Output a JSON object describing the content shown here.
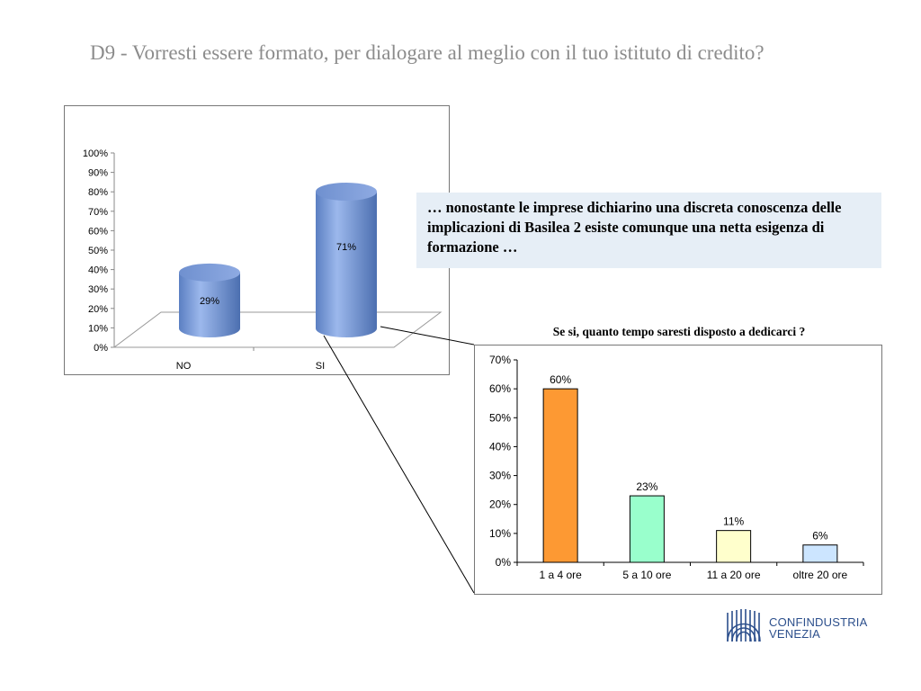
{
  "title": "D9 - Vorresti essere formato, per dialogare al meglio con il tuo istituto di credito?",
  "callout": "… nonostante le imprese dichiarino una discreta conoscenza delle implicazioni  di Basilea 2 esiste comunque una netta esigenza di formazione …",
  "logo": {
    "line1": "CONFINDUSTRIA",
    "line2": "VENEZIA"
  },
  "colors": {
    "title": "#8c8c8c",
    "cylinder": "#7f9fd8",
    "callout_bg": "#e6eef6",
    "logo": "#2c4f8c"
  },
  "chart_data": [
    {
      "type": "bar",
      "style": "3d-cylinder",
      "title": "",
      "categories": [
        "NO",
        "SI"
      ],
      "values": [
        29,
        71
      ],
      "data_labels": [
        "29%",
        "71%"
      ],
      "ylim": [
        0,
        100
      ],
      "yticks": [
        "0%",
        "10%",
        "20%",
        "30%",
        "40%",
        "50%",
        "60%",
        "70%",
        "80%",
        "90%",
        "100%"
      ],
      "grid": false,
      "legend": "none"
    },
    {
      "type": "bar",
      "title": "Se si, quanto tempo saresti disposto a dedicarci ?",
      "categories": [
        "1 a 4 ore",
        "5 a 10 ore",
        "11 a 20 ore",
        "oltre 20 ore"
      ],
      "values": [
        60,
        23,
        11,
        6
      ],
      "data_labels": [
        "60%",
        "23%",
        "11%",
        "6%"
      ],
      "colors": [
        "#fd9933",
        "#99ffcc",
        "#ffffcc",
        "#cce5ff"
      ],
      "ylim": [
        0,
        70
      ],
      "yticks": [
        "0%",
        "10%",
        "20%",
        "30%",
        "40%",
        "50%",
        "60%",
        "70%"
      ],
      "grid": false,
      "legend": "none"
    }
  ]
}
